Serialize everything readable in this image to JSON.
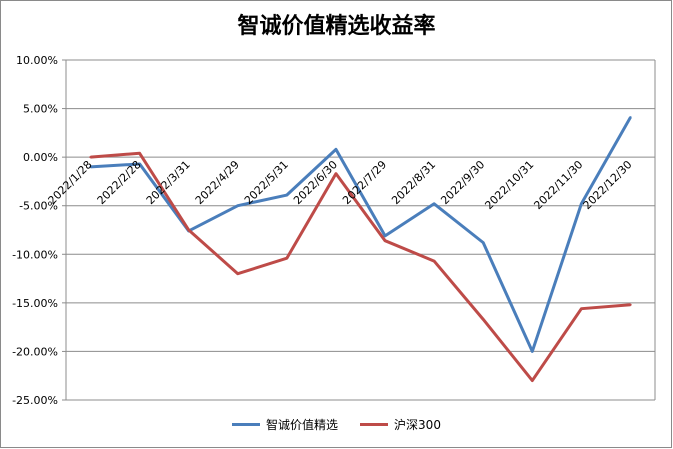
{
  "chart_data": {
    "type": "line",
    "title": "智诚价值精选收益率",
    "categories": [
      "2022/1/28",
      "2022/2/28",
      "2022/3/31",
      "2022/4/29",
      "2022/5/31",
      "2022/6/30",
      "2022/7/29",
      "2022/8/31",
      "2022/9/30",
      "2022/10/31",
      "2022/11/30",
      "2022/12/30"
    ],
    "y_ticks": [
      "10.00%",
      "5.00%",
      "0.00%",
      "-5.00%",
      "-10.00%",
      "-15.00%",
      "-20.00%",
      "-25.00%"
    ],
    "ylim": [
      -25,
      10
    ],
    "y_unit": "%",
    "grid": true,
    "legend_position": "bottom",
    "series": [
      {
        "name": "智诚价值精选",
        "color": "#4a7ebb",
        "values": [
          -1.0,
          -0.7,
          -7.6,
          -5.0,
          -3.9,
          0.8,
          -8.1,
          -4.8,
          -8.8,
          -20.0,
          -4.8,
          4.1
        ]
      },
      {
        "name": "沪深300",
        "color": "#be4b48",
        "values": [
          0.0,
          0.4,
          -7.5,
          -12.0,
          -10.4,
          -1.7,
          -8.6,
          -10.7,
          -16.7,
          -23.0,
          -15.6,
          -15.2
        ]
      }
    ]
  }
}
